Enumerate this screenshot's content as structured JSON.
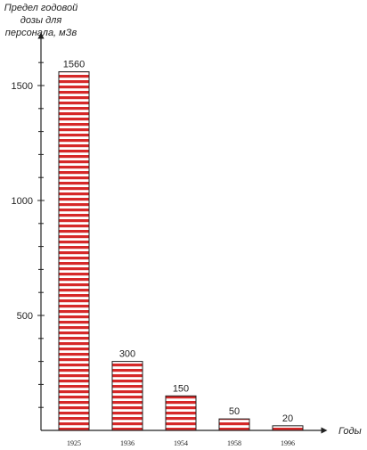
{
  "chart_data": {
    "type": "bar",
    "ylabel_lines": [
      "Предел годовой",
      "дозы для",
      "персонала, мЗв"
    ],
    "xlabel": "Годы",
    "categories": [
      "1925",
      "1936",
      "1954",
      "1958",
      "1996"
    ],
    "values": [
      1560,
      300,
      150,
      50,
      20
    ],
    "value_labels": [
      "1560",
      "300",
      "150",
      "50",
      "20"
    ],
    "y_ticks": [
      500,
      1000,
      1500
    ],
    "y_tick_labels": [
      "500",
      "1000",
      "1500"
    ],
    "ylim": [
      0,
      1700
    ],
    "minor_tick_step": 100,
    "grid": false,
    "legend": "none",
    "colors": {
      "bar_stripe": "#d62828",
      "bar_bg": "#ffffff",
      "axis": "#222222"
    }
  }
}
